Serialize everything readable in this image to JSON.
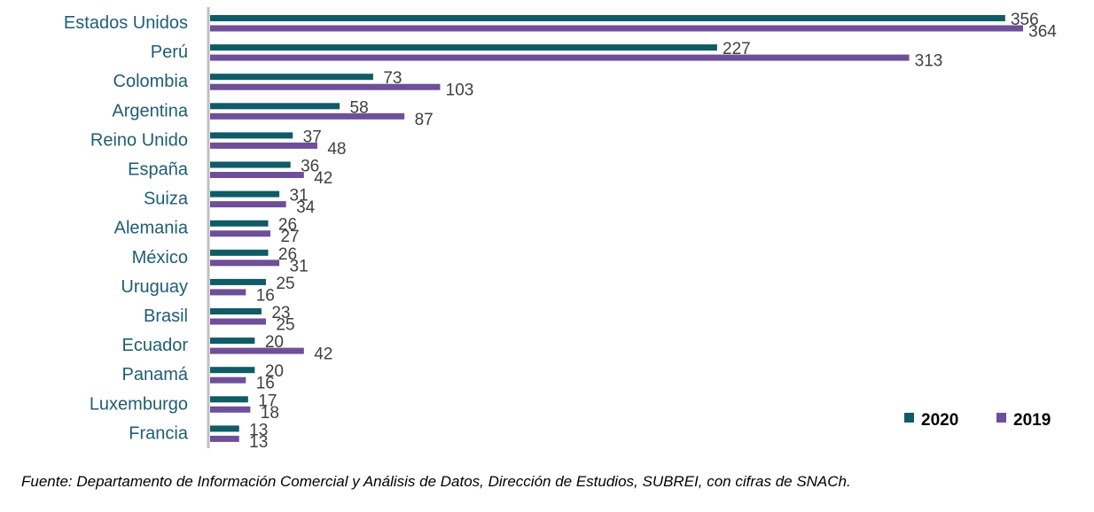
{
  "chart_data": {
    "type": "bar",
    "orientation": "horizontal",
    "categories": [
      "Estados Unidos",
      "Perú",
      "Colombia",
      "Argentina",
      "Reino Unido",
      "España",
      "Suiza",
      "Alemania",
      "México",
      "Uruguay",
      "Brasil",
      "Ecuador",
      "Panamá",
      "Luxemburgo",
      "Francia"
    ],
    "series": [
      {
        "name": "2020",
        "color": "#0f5b66",
        "values": [
          356,
          227,
          73,
          58,
          37,
          36,
          31,
          26,
          26,
          25,
          23,
          20,
          20,
          17,
          13
        ]
      },
      {
        "name": "2019",
        "color": "#6e4f98",
        "values": [
          364,
          313,
          103,
          87,
          48,
          42,
          34,
          27,
          31,
          16,
          25,
          42,
          16,
          18,
          13
        ]
      }
    ],
    "xlim": [
      0,
      400
    ],
    "grid": false,
    "legend": "bottom-right",
    "data_labels": true
  },
  "source_note": "Fuente: Departamento de Información Comercial y Análisis de Datos, Dirección de Estudios, SUBREI, con cifras de SNACh."
}
